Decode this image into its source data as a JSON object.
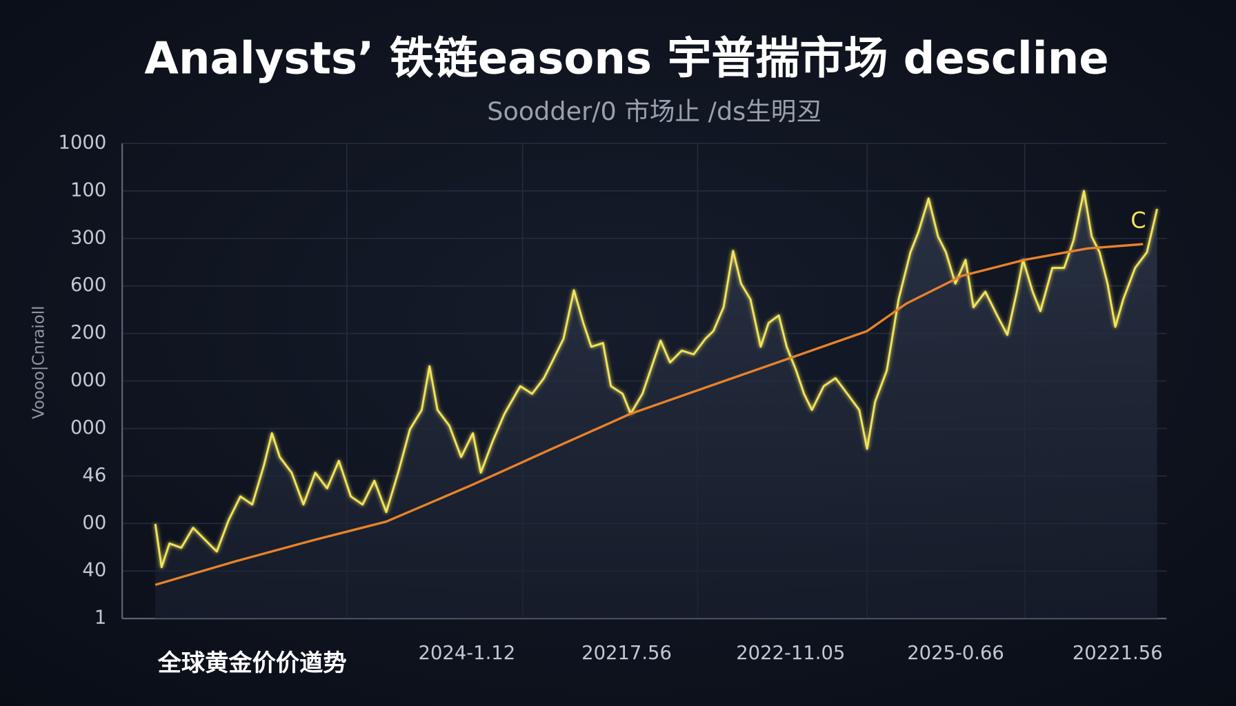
{
  "chart_data": {
    "type": "line",
    "title": "Analysts’ 铁链easons 宇普揣市场 descline",
    "subtitle": "Soodder/0 市场止 /ds生明丒",
    "y_label": "Voooo|Cnraioll",
    "caption": "全球黄金价价遒势",
    "annotation": "C",
    "grid": true,
    "xlim": [
      0,
      100
    ],
    "ylim": [
      0,
      10
    ],
    "xticks": [
      {
        "value": 33,
        "label": "2024-1.12"
      },
      {
        "value": 48.3,
        "label": "20217.56"
      },
      {
        "value": 64,
        "label": "2022-11.05"
      },
      {
        "value": 79.8,
        "label": "2025-0.66"
      },
      {
        "value": 95.3,
        "label": "20221.56"
      }
    ],
    "yticks": [
      {
        "value": 0,
        "label": "1"
      },
      {
        "value": 1,
        "label": "40"
      },
      {
        "value": 2,
        "label": "00"
      },
      {
        "value": 3,
        "label": "46"
      },
      {
        "value": 4,
        "label": "000"
      },
      {
        "value": 5,
        "label": "000"
      },
      {
        "value": 6,
        "label": "200"
      },
      {
        "value": 7,
        "label": "600"
      },
      {
        "value": 8,
        "label": "300"
      },
      {
        "value": 9,
        "label": "100"
      },
      {
        "value": 10,
        "label": "1000"
      }
    ],
    "series": [
      {
        "color": "#f3e45c",
        "x": [
          3.17,
          3.77,
          4.53,
          5.66,
          6.79,
          7.92,
          9.06,
          10.19,
          11.32,
          12.45,
          13.58,
          14.34,
          15.09,
          16.23,
          17.36,
          18.49,
          19.62,
          20.75,
          21.89,
          23.02,
          24.15,
          25.28,
          26.42,
          27.55,
          28.68,
          29.43,
          30.19,
          31.32,
          32.45,
          33.58,
          34.34,
          35.47,
          36.6,
          38.11,
          39.25,
          40.38,
          41.13,
          42.26,
          43.25,
          44.15,
          44.91,
          46.04,
          46.79,
          47.92,
          48.68,
          49.81,
          50.57,
          51.55,
          52.45,
          53.58,
          54.72,
          55.85,
          56.6,
          57.58,
          58.49,
          59.25,
          60.15,
          61.13,
          61.89,
          62.87,
          63.62,
          64.53,
          65.28,
          66.04,
          67.17,
          68.3,
          69.43,
          70.57,
          71.32,
          72.08,
          73.21,
          74.34,
          75.47,
          76.23,
          77.21,
          78.11,
          78.87,
          79.77,
          80.75,
          81.51,
          82.64,
          83.77,
          84.75,
          85.66,
          86.26,
          87.17,
          87.92,
          89.06,
          90.19,
          91.09,
          92.08,
          92.83,
          93.58,
          94.34,
          95.09,
          95.85,
          96.98,
          98.11,
          99.09
        ],
        "values": [
          1.99,
          1.08,
          1.58,
          1.49,
          1.91,
          1.66,
          1.41,
          2.07,
          2.57,
          2.4,
          3.23,
          3.9,
          3.4,
          3.07,
          2.4,
          3.07,
          2.74,
          3.32,
          2.57,
          2.4,
          2.9,
          2.24,
          3.07,
          3.98,
          4.39,
          5.31,
          4.39,
          4.06,
          3.4,
          3.9,
          3.07,
          3.73,
          4.31,
          4.89,
          4.73,
          5.06,
          5.39,
          5.89,
          6.91,
          6.22,
          5.72,
          5.8,
          4.89,
          4.73,
          4.31,
          4.73,
          5.22,
          5.85,
          5.39,
          5.64,
          5.56,
          5.89,
          6.05,
          6.55,
          7.74,
          7.05,
          6.72,
          5.72,
          6.22,
          6.38,
          5.72,
          5.22,
          4.73,
          4.39,
          4.89,
          5.06,
          4.73,
          4.39,
          3.57,
          4.56,
          5.22,
          6.72,
          7.71,
          8.13,
          8.84,
          8.04,
          7.71,
          7.05,
          7.55,
          6.55,
          6.88,
          6.38,
          5.97,
          6.88,
          7.55,
          6.88,
          6.47,
          7.38,
          7.38,
          7.96,
          9.0,
          8.04,
          7.71,
          7.05,
          6.14,
          6.72,
          7.38,
          7.71,
          8.62
        ]
      },
      {
        "color": "#e8822a",
        "x": [
          3.17,
          10.94,
          18.49,
          25.28,
          33.58,
          41.13,
          48.68,
          56.23,
          63.77,
          71.32,
          75.09,
          80.38,
          86.42,
          92.45,
          97.74
        ],
        "values": [
          0.71,
          1.21,
          1.66,
          2.04,
          2.82,
          3.57,
          4.31,
          4.89,
          5.47,
          6.05,
          6.63,
          7.21,
          7.55,
          7.79,
          7.88
        ]
      }
    ]
  }
}
